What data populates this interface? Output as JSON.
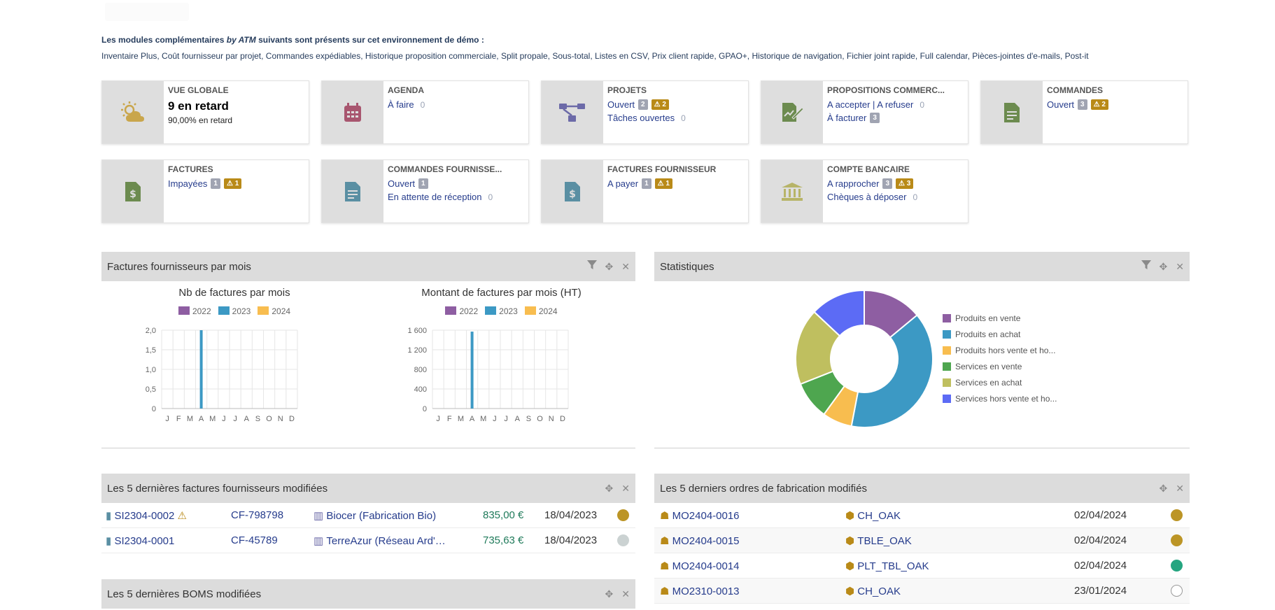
{
  "intro": {
    "title_prefix": "Les modules complémentaires ",
    "title_em": "by ATM",
    "title_suffix": " suivants sont présents sur cet environnement de démo :",
    "modules": "Inventaire Plus, Coût fournisseur par projet, Commandes expédiables, Historique proposition commerciale, Split propale, Sous-total, Listes en CSV, Prix client rapide, GPAO+, Historique de navigation, Fichier joint rapide, Full calendar, Pièces-jointes d'e-mails, Post-it"
  },
  "boxes": {
    "overview": {
      "title": "VUE GLOBALE",
      "big": "9 en retard",
      "small": "90,00% en retard",
      "icon": "weather-icon",
      "color": "#c9a64c"
    },
    "agenda": {
      "title": "AGENDA",
      "line1": "À faire",
      "line1_count": "0",
      "icon": "calendar-icon",
      "color": "#a8566f"
    },
    "projects": {
      "title": "PROJETS",
      "line1": "Ouvert",
      "line1_badge": "2",
      "line1_warn": "2",
      "line2": "Tâches ouvertes",
      "line2_count": "0",
      "icon": "project-icon",
      "color": "#6c6aa8"
    },
    "proposals": {
      "title": "PROPOSITIONS COMMERC...",
      "line1": "A accepter | A refuser",
      "line1_count": "0",
      "line2": "À facturer",
      "line2_badge": "3",
      "icon": "proposal-icon",
      "color": "#6c8b4f"
    },
    "orders": {
      "title": "COMMANDES",
      "line1": "Ouvert",
      "line1_badge": "3",
      "line1_warn": "2",
      "icon": "order-icon",
      "color": "#6c8b4f"
    },
    "invoices": {
      "title": "FACTURES",
      "line1": "Impayées",
      "line1_badge": "1",
      "line1_warn": "1",
      "icon": "invoice-icon",
      "color": "#6c8b4f"
    },
    "supplier_orders": {
      "title": "COMMANDES FOURNISSE...",
      "line1": "Ouvert",
      "line1_badge": "1",
      "line2": "En attente de réception",
      "line2_count": "0",
      "icon": "supplier-order-icon",
      "color": "#5a8fa3"
    },
    "supplier_invoices": {
      "title": "FACTURES FOURNISSEUR",
      "line1": "A payer",
      "line1_badge": "1",
      "line1_warn": "1",
      "icon": "supplier-invoice-icon",
      "color": "#5a8fa3"
    },
    "bank": {
      "title": "COMPTE BANCAIRE",
      "line1": "A rapprocher",
      "line1_badge": "3",
      "line1_warn": "3",
      "line2": "Chèques à déposer",
      "line2_count": "0",
      "icon": "bank-icon",
      "color": "#b7b468"
    }
  },
  "panel_supplier_invoices_chart": {
    "title": "Factures fournisseurs par mois"
  },
  "panel_stats": {
    "title": "Statistiques"
  },
  "panel_last_supplier_invoices": {
    "title": "Les 5 dernières factures fournisseurs modifiées",
    "rows": [
      {
        "ref": "SI2304-0002",
        "warn": true,
        "supplier_ref": "CF-798798",
        "company": "Biocer (Fabrication Bio)",
        "amount": "835,00 €",
        "date": "18/04/2023",
        "status_color": "#bc9526"
      },
      {
        "ref": "SI2304-0001",
        "warn": false,
        "supplier_ref": "CF-45789",
        "company": "TerreAzur (Réseau Ard'Pr...",
        "amount": "735,63 €",
        "date": "18/04/2023",
        "status_color": "#cbd2d2"
      }
    ]
  },
  "panel_last_mo": {
    "title": "Les 5 derniers ordres de fabrication modifiés",
    "rows": [
      {
        "ref": "MO2404-0016",
        "product": "CH_OAK",
        "date": "02/04/2024",
        "status": "#bc9526"
      },
      {
        "ref": "MO2404-0015",
        "product": "TBLE_OAK",
        "date": "02/04/2024",
        "status": "#bc9526"
      },
      {
        "ref": "MO2404-0014",
        "product": "PLT_TBL_OAK",
        "date": "02/04/2024",
        "status": "#25a580"
      },
      {
        "ref": "MO2310-0013",
        "product": "CH_OAK",
        "date": "23/01/2024",
        "status": "outline"
      }
    ]
  },
  "panel_last_boms": {
    "title": "Les 5 dernières BOMS modifiées"
  },
  "chart_data": [
    {
      "type": "bar",
      "title": "Nb de factures par mois",
      "categories": [
        "J",
        "F",
        "M",
        "A",
        "M",
        "J",
        "J",
        "A",
        "S",
        "O",
        "N",
        "D"
      ],
      "series": [
        {
          "name": "2022",
          "color": "#8e5ea2",
          "values": [
            0,
            0,
            0,
            0,
            0,
            0,
            0,
            0,
            0,
            0,
            0,
            0
          ]
        },
        {
          "name": "2023",
          "color": "#3c99c4",
          "values": [
            0,
            0,
            0,
            2,
            0,
            0,
            0,
            0,
            0,
            0,
            0,
            0
          ]
        },
        {
          "name": "2024",
          "color": "#f8bd4f",
          "values": [
            0,
            0,
            0,
            0,
            0,
            0,
            0,
            0,
            0,
            0,
            0,
            0
          ]
        }
      ],
      "ylim": [
        0,
        2
      ],
      "yticks": [
        "0",
        "0,5",
        "1,0",
        "1,5",
        "2,0"
      ],
      "ytick_values": [
        0,
        0.5,
        1,
        1.5,
        2
      ]
    },
    {
      "type": "bar",
      "title": "Montant de factures par mois (HT)",
      "categories": [
        "J",
        "F",
        "M",
        "A",
        "M",
        "J",
        "J",
        "A",
        "S",
        "O",
        "N",
        "D"
      ],
      "series": [
        {
          "name": "2022",
          "color": "#8e5ea2",
          "values": [
            0,
            0,
            0,
            0,
            0,
            0,
            0,
            0,
            0,
            0,
            0,
            0
          ]
        },
        {
          "name": "2023",
          "color": "#3c99c4",
          "values": [
            0,
            0,
            0,
            1570.63,
            0,
            0,
            0,
            0,
            0,
            0,
            0,
            0
          ]
        },
        {
          "name": "2024",
          "color": "#f8bd4f",
          "values": [
            0,
            0,
            0,
            0,
            0,
            0,
            0,
            0,
            0,
            0,
            0,
            0
          ]
        }
      ],
      "ylim": [
        0,
        1600
      ],
      "yticks": [
        "0",
        "400",
        "800",
        "1 200",
        "1 600"
      ],
      "ytick_values": [
        0,
        400,
        800,
        1200,
        1600
      ]
    },
    {
      "type": "pie",
      "slices": [
        {
          "label": "Produits en vente",
          "value": 14,
          "color": "#8e5ea2"
        },
        {
          "label": "Produits en achat",
          "value": 39,
          "color": "#3c99c4"
        },
        {
          "label": "Produits hors vente et ho...",
          "value": 7,
          "color": "#f8bd4f"
        },
        {
          "label": "Services en vente",
          "value": 9,
          "color": "#4ea64f"
        },
        {
          "label": "Services en achat",
          "value": 18,
          "color": "#bfbf5f"
        },
        {
          "label": "Services hors vente et ho...",
          "value": 13,
          "color": "#5c6bf5"
        }
      ]
    }
  ]
}
